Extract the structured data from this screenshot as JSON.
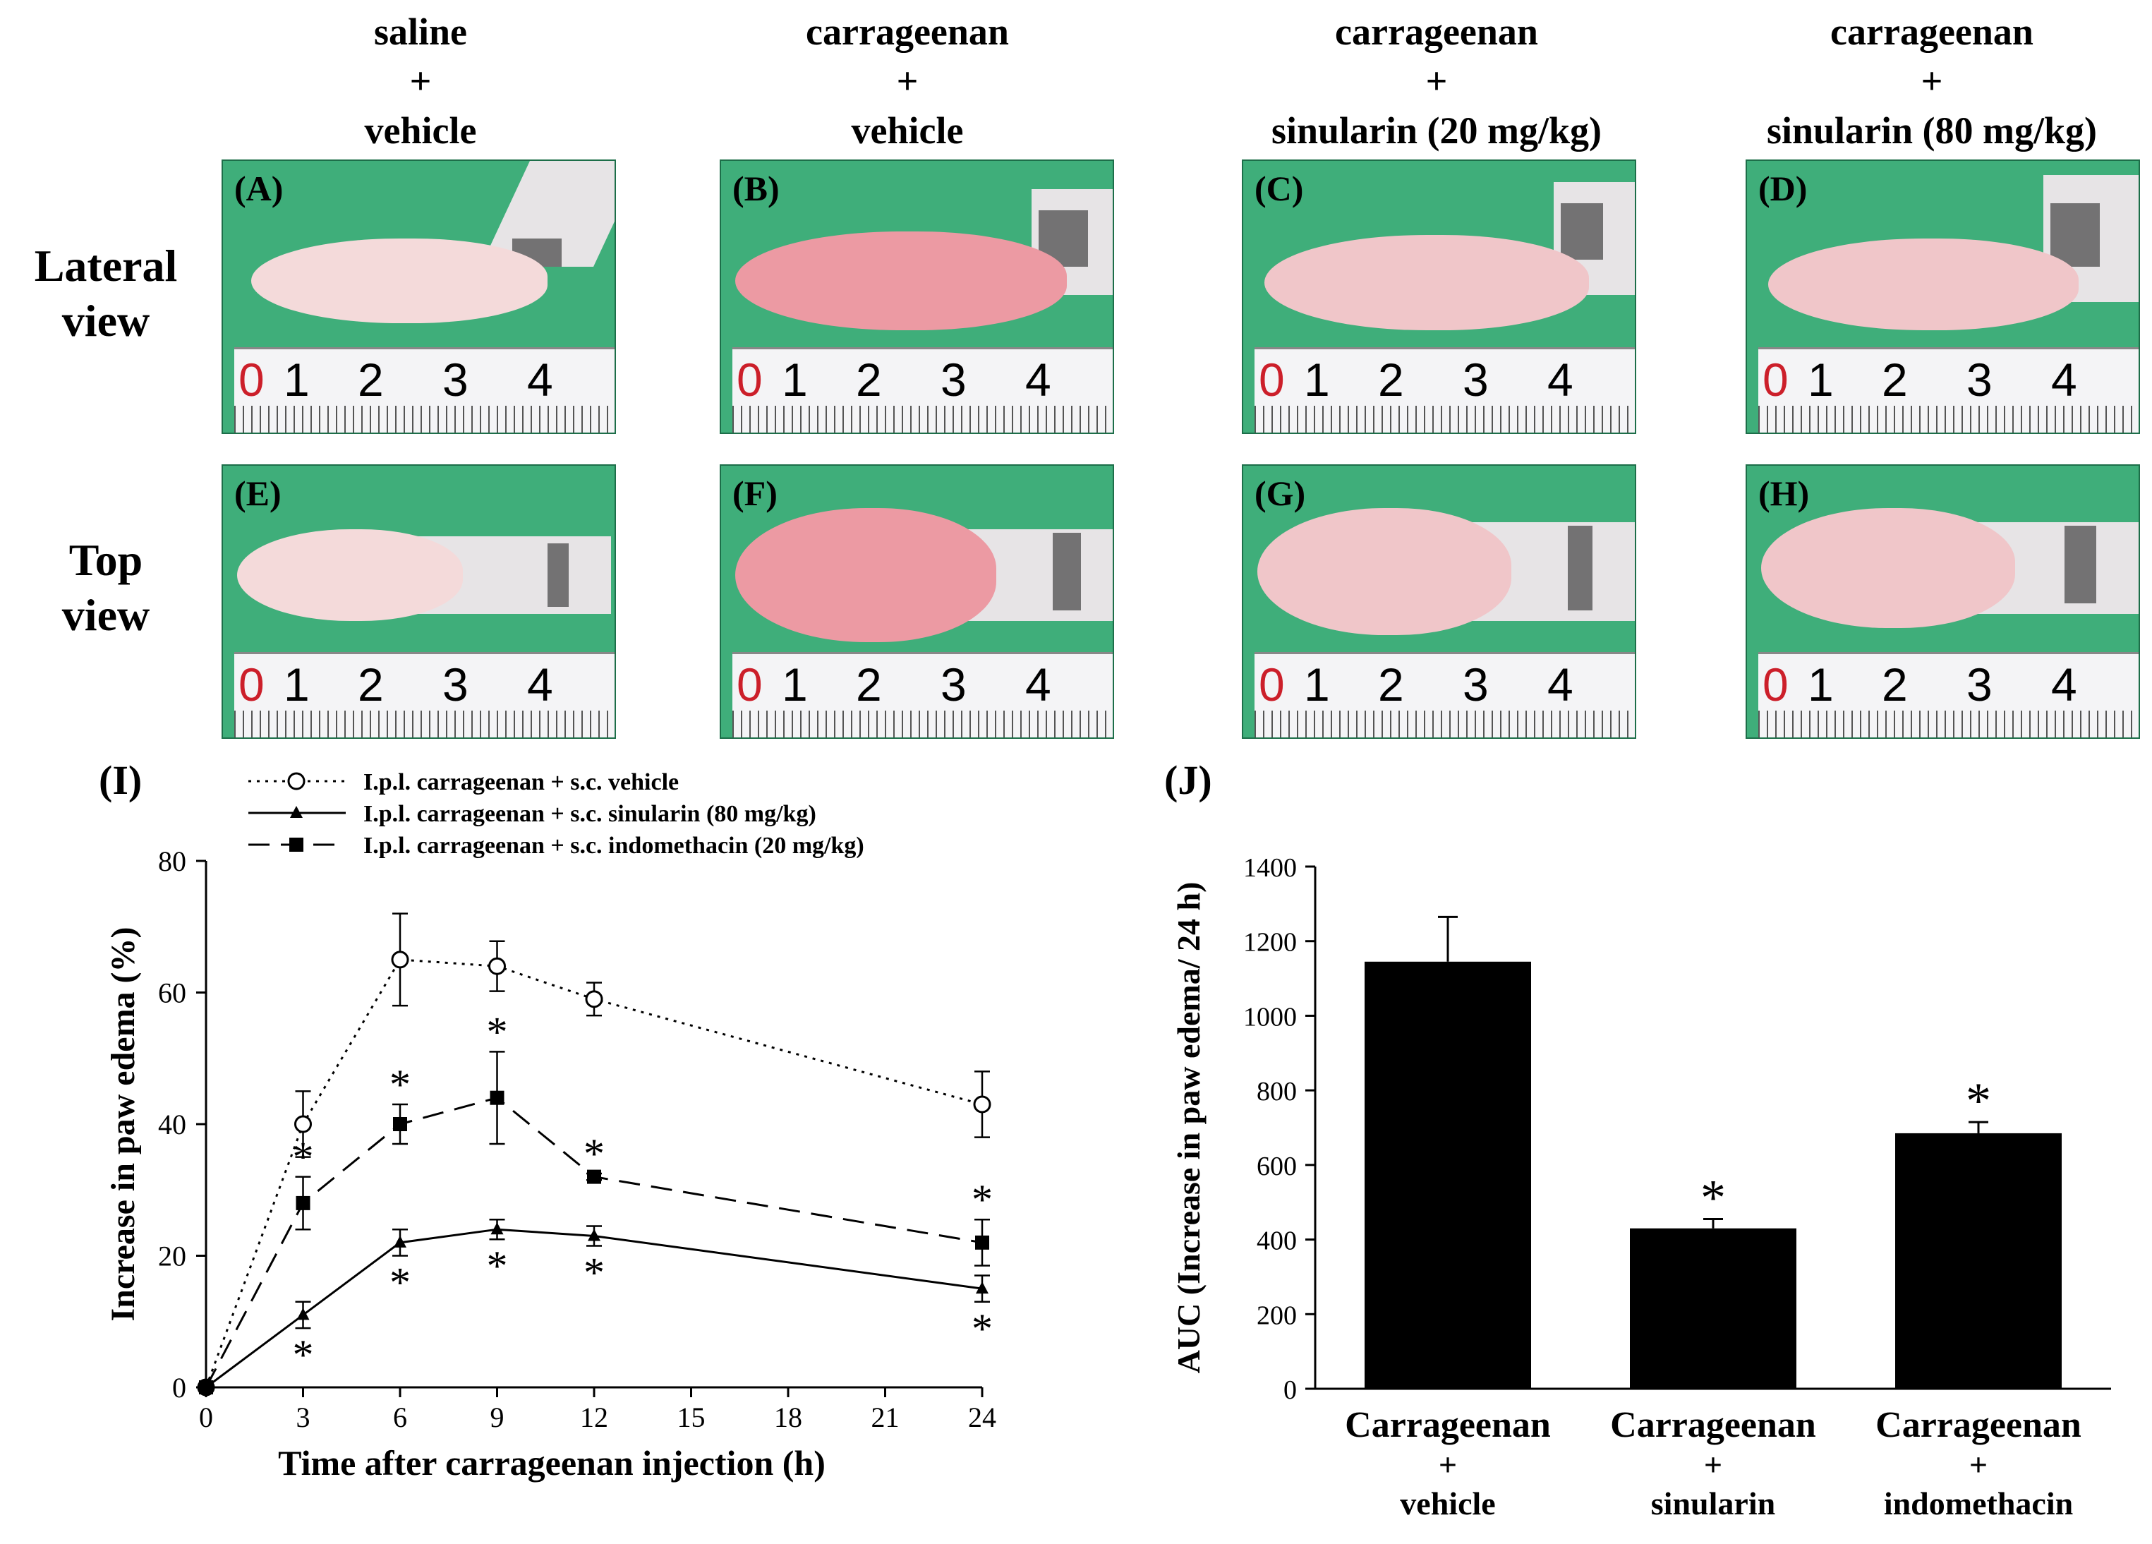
{
  "column_headers": [
    [
      "saline",
      "+",
      "vehicle"
    ],
    [
      "carrageenan",
      "+",
      "vehicle"
    ],
    [
      "carrageenan",
      "+",
      "sinularin (20 mg/kg)"
    ],
    [
      "carrageenan",
      "+",
      "sinularin (80 mg/kg)"
    ]
  ],
  "row_labels": [
    [
      "Lateral",
      "view"
    ],
    [
      "Top",
      "view"
    ]
  ],
  "photo_tags": [
    "(A)",
    "(B)",
    "(C)",
    "(D)",
    "(E)",
    "(F)",
    "(G)",
    "(H)"
  ],
  "ruler_numbers": [
    "0",
    "1",
    "2",
    "3",
    "4"
  ],
  "panel_labels": {
    "line": "(I)",
    "bar": "(J)"
  },
  "colors": {
    "photo_bg": "#3fae7a",
    "ruler_zero": "#cc1f2a",
    "ink": "#000000"
  },
  "chart_data": [
    {
      "type": "line",
      "title": "",
      "xlabel": "Time after carrageenan injection (h)",
      "ylabel": "Increase in paw edema (%)",
      "xlim": [
        0,
        24
      ],
      "ylim": [
        0,
        80
      ],
      "x_ticks": [
        "0",
        "3",
        "6",
        "9",
        "12",
        "15",
        "18",
        "21",
        "24"
      ],
      "y_ticks": [
        "0",
        "20",
        "40",
        "60",
        "80"
      ],
      "legend_position": "top",
      "series": [
        {
          "name": "I.p.l. carrageenan + s.c. vehicle",
          "marker": "open-circle",
          "line": "dotted",
          "x": [
            0,
            3,
            6,
            9,
            12,
            24
          ],
          "y": [
            0,
            40,
            65,
            64,
            59,
            43
          ],
          "err": [
            0,
            5,
            7,
            3.8,
            2.5,
            5
          ],
          "significant": [
            false,
            false,
            false,
            false,
            false,
            false
          ]
        },
        {
          "name": "I.p.l. carrageenan + s.c. sinularin (80 mg/kg)",
          "marker": "triangle",
          "line": "solid",
          "x": [
            0,
            3,
            6,
            9,
            12,
            24
          ],
          "y": [
            0,
            11,
            22,
            24,
            23,
            15
          ],
          "err": [
            0,
            2,
            2,
            1.5,
            1.5,
            2
          ],
          "significant": [
            false,
            true,
            true,
            true,
            true,
            true
          ]
        },
        {
          "name": "I.p.l. carrageenan + s.c. indomethacin (20 mg/kg)",
          "marker": "filled-square",
          "line": "dashed",
          "x": [
            0,
            3,
            6,
            9,
            12,
            24
          ],
          "y": [
            0,
            28,
            40,
            44,
            32,
            22
          ],
          "err": [
            0,
            4,
            3,
            7,
            0.5,
            3.5
          ],
          "significant": [
            false,
            true,
            true,
            true,
            true,
            true
          ]
        }
      ],
      "significance_marker": "*"
    },
    {
      "type": "bar",
      "title": "",
      "xlabel": "",
      "ylabel": "AUC (Increase in paw edema/ 24 h)",
      "ylim": [
        0,
        1400
      ],
      "y_ticks": [
        "0",
        "200",
        "400",
        "600",
        "800",
        "1000",
        "1200",
        "1400"
      ],
      "categories": [
        [
          "Carrageenan",
          "+",
          "vehicle"
        ],
        [
          "Carrageenan",
          "+",
          "sinularin"
        ],
        [
          "Carrageenan",
          "+",
          "indomethacin"
        ]
      ],
      "values": [
        1145,
        430,
        685
      ],
      "err": [
        120,
        25,
        30
      ],
      "significant": [
        false,
        true,
        true
      ],
      "significance_marker": "*"
    }
  ]
}
